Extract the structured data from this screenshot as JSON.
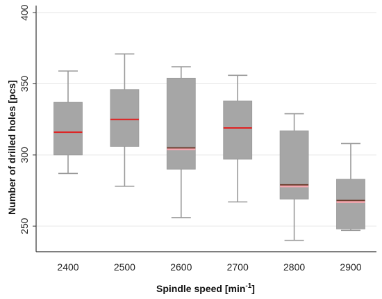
{
  "chart_data": {
    "type": "box",
    "xlabel": "Spindle speed [min",
    "xlabel_superscript": "-1",
    "xlabel_suffix": "]",
    "ylabel": "Number of drilled holes [pcs]",
    "ylim": [
      232,
      405
    ],
    "yticks": [
      250,
      300,
      350,
      400
    ],
    "grid": "horizontal",
    "colors": {
      "box_fill": "#a6a6a6",
      "whisker": "#999999",
      "median_red": "#e02020",
      "median_dark": "#6b3a2a",
      "median_halo": "#f4a7b0",
      "grid": "#e6e6e6",
      "axis": "#333333"
    },
    "categories": [
      "2400",
      "2500",
      "2600",
      "2700",
      "2800",
      "2900"
    ],
    "boxes": [
      {
        "category": "2400",
        "min": 287,
        "q1": 300,
        "median": 316,
        "q3": 337,
        "max": 359,
        "median_style": "red"
      },
      {
        "category": "2500",
        "min": 278,
        "q1": 306,
        "median": 325,
        "q3": 346,
        "max": 371,
        "median_style": "red"
      },
      {
        "category": "2600",
        "min": 256,
        "q1": 290,
        "median": 305,
        "q3": 354,
        "max": 362,
        "median_style": "dark"
      },
      {
        "category": "2700",
        "min": 267,
        "q1": 297,
        "median": 319,
        "q3": 338,
        "max": 356,
        "median_style": "red"
      },
      {
        "category": "2800",
        "min": 240,
        "q1": 269,
        "median": 279,
        "q3": 317,
        "max": 329,
        "median_style": "dark"
      },
      {
        "category": "2900",
        "min": 247,
        "q1": 248,
        "median": 268,
        "q3": 283,
        "max": 308,
        "median_style": "dark"
      }
    ]
  }
}
